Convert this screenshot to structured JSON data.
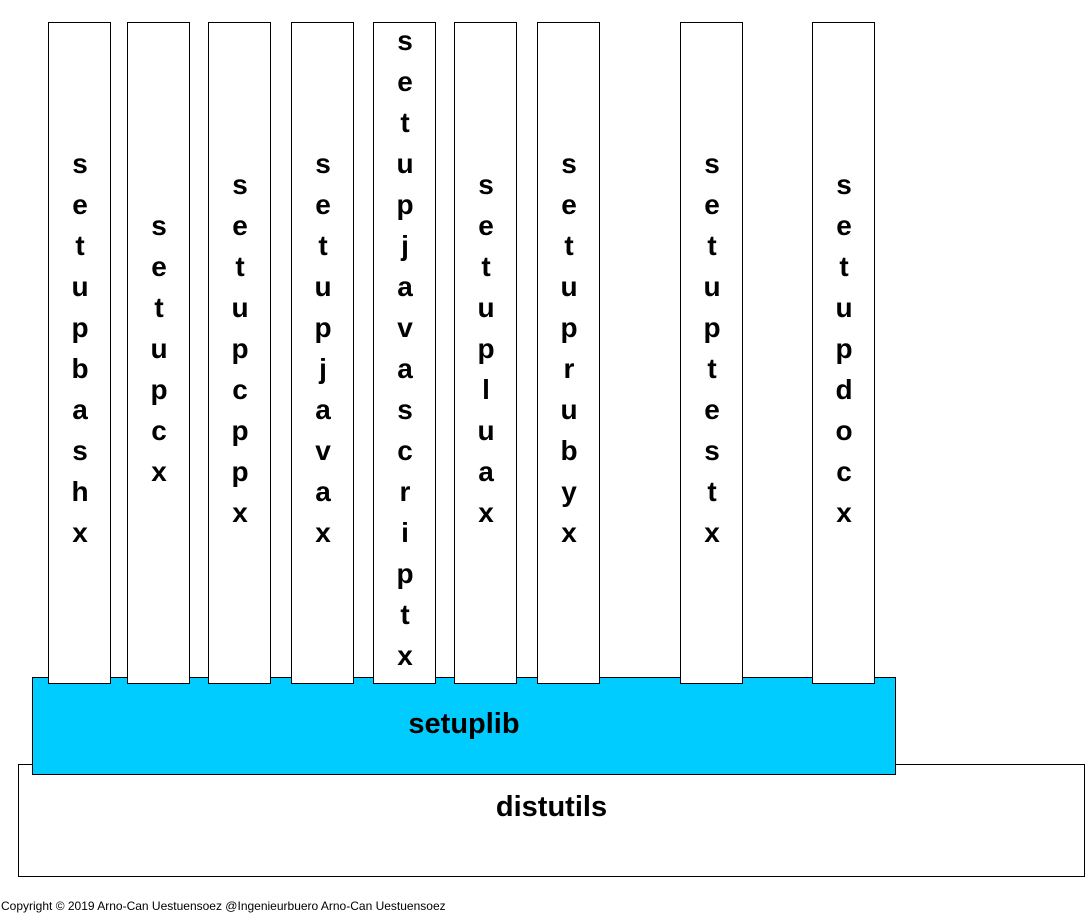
{
  "columns": [
    {
      "label": "setupbashx",
      "color": "#ffffff"
    },
    {
      "label": "setupcx",
      "color": "#ffffff"
    },
    {
      "label": "setupcppx",
      "color": "#ffffff"
    },
    {
      "label": "setupjavax",
      "color": "#ffffff"
    },
    {
      "label": "setupjavascriptx",
      "color": "#ffffff"
    },
    {
      "label": "setupluax",
      "color": "#ffffff"
    },
    {
      "label": "setuprubyx",
      "color": "#ffffff"
    },
    {
      "label": "setuptestx",
      "color": "#ffffff"
    },
    {
      "label": "setupdocx",
      "color": "#ffffff"
    }
  ],
  "layers": {
    "setuplib": {
      "label": "setuplib",
      "color": "#00ccff"
    },
    "distutils": {
      "label": "distutils",
      "color": "#ffffff"
    }
  },
  "footer": {
    "copyright": "Copyright © 2019 Arno-Can Uestuensoez @Ingenieurbuero Arno-Can Uestuensoez"
  }
}
